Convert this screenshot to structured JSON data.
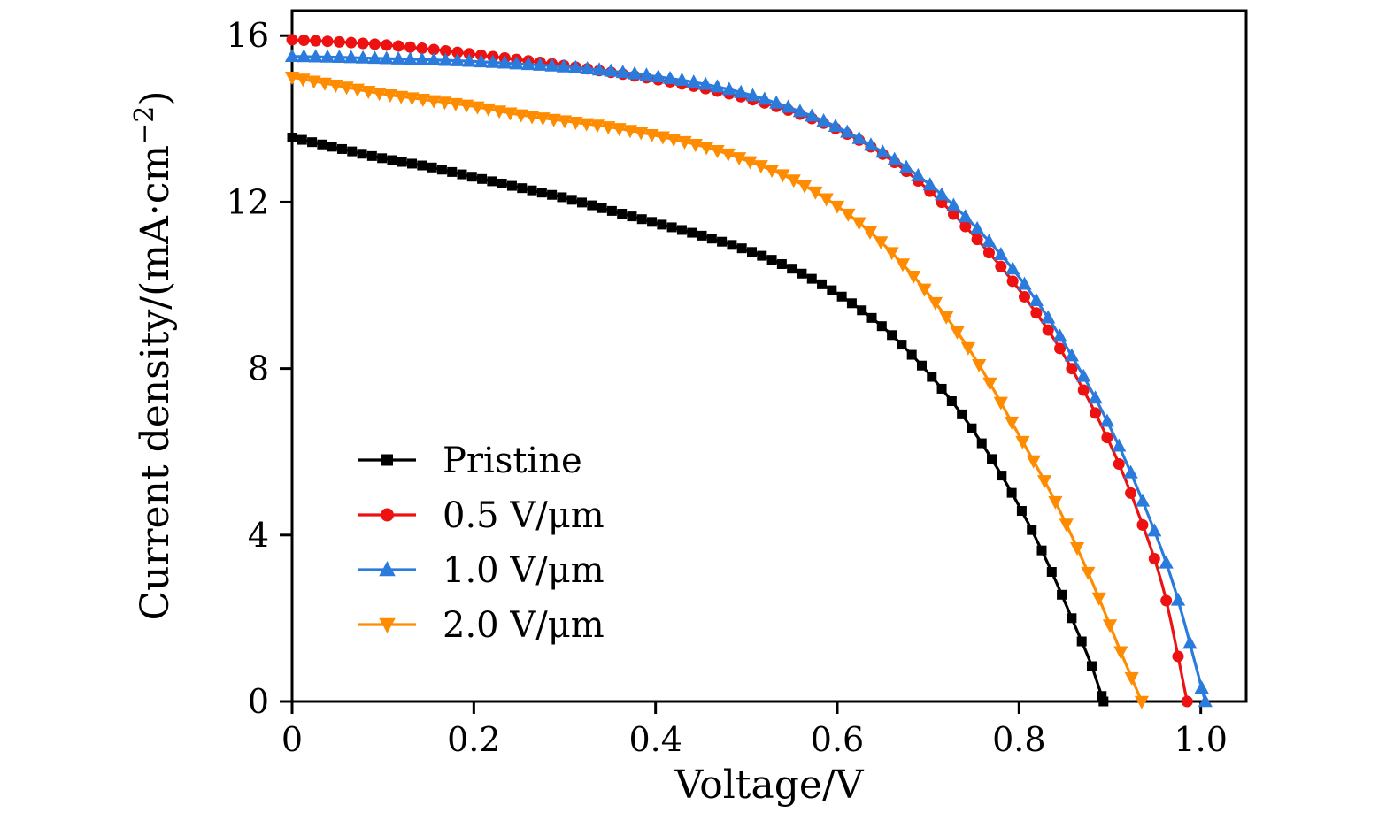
{
  "figure": {
    "background": "#ffffff",
    "frame_color": "#000000"
  },
  "chart_data": {
    "type": "line",
    "title": "",
    "xlabel": "Voltage/V",
    "ylabel": {
      "pre": "Current density/(mA·cm",
      "sup": "−2",
      "post": ")"
    },
    "xlim": [
      0,
      1.05
    ],
    "ylim": [
      0,
      16.6
    ],
    "xticks": [
      0,
      0.2,
      0.4,
      0.6,
      0.8,
      1.0
    ],
    "xtick_labels": [
      "0",
      "0.2",
      "0.4",
      "0.6",
      "0.8",
      "1.0"
    ],
    "yticks": [
      0,
      4,
      8,
      12,
      16
    ],
    "ytick_labels": [
      "0",
      "4",
      "8",
      "12",
      "16"
    ],
    "grid": false,
    "legend_position": "inside-left-middle",
    "series": [
      {
        "name": "Pristine",
        "color": "#000000",
        "marker": "square",
        "marker_size": 11,
        "marker_step": 0.011,
        "x": [
          0,
          0.05,
          0.1,
          0.15,
          0.2,
          0.25,
          0.3,
          0.35,
          0.4,
          0.45,
          0.5,
          0.55,
          0.6,
          0.65,
          0.7,
          0.75,
          0.8,
          0.83,
          0.86,
          0.88,
          0.893
        ],
        "y": [
          13.55,
          13.3,
          13.05,
          12.85,
          12.6,
          12.35,
          12.1,
          11.8,
          11.5,
          11.2,
          10.85,
          10.4,
          9.8,
          9.0,
          7.9,
          6.5,
          4.7,
          3.4,
          1.9,
          0.85,
          0
        ]
      },
      {
        "name": "0.5 V/μm",
        "color": "#ed1111",
        "marker": "circle",
        "marker_size": 13,
        "marker_step": 0.013,
        "x": [
          0,
          0.05,
          0.1,
          0.15,
          0.2,
          0.25,
          0.3,
          0.35,
          0.4,
          0.45,
          0.5,
          0.55,
          0.6,
          0.65,
          0.7,
          0.75,
          0.8,
          0.85,
          0.9,
          0.93,
          0.96,
          0.985
        ],
        "y": [
          15.9,
          15.85,
          15.78,
          15.68,
          15.55,
          15.42,
          15.28,
          15.12,
          14.95,
          14.75,
          14.5,
          14.18,
          13.75,
          13.15,
          12.3,
          11.2,
          9.9,
          8.3,
          6.2,
          4.6,
          2.6,
          0
        ]
      },
      {
        "name": "1.0 V/μm",
        "color": "#2b7bdc",
        "marker": "triangle-up",
        "marker_size": 14,
        "marker_step": 0.013,
        "x": [
          0,
          0.05,
          0.1,
          0.15,
          0.2,
          0.25,
          0.3,
          0.35,
          0.4,
          0.45,
          0.5,
          0.55,
          0.6,
          0.65,
          0.7,
          0.75,
          0.8,
          0.85,
          0.9,
          0.94,
          0.97,
          1.005
        ],
        "y": [
          15.5,
          15.48,
          15.45,
          15.42,
          15.38,
          15.32,
          15.25,
          15.15,
          15.02,
          14.85,
          14.6,
          14.25,
          13.8,
          13.2,
          12.45,
          11.45,
          10.2,
          8.6,
          6.6,
          4.6,
          2.8,
          0
        ]
      },
      {
        "name": "2.0 V/μm",
        "color": "#ff8c00",
        "marker": "triangle-down",
        "marker_size": 14,
        "marker_step": 0.012,
        "x": [
          0,
          0.05,
          0.1,
          0.15,
          0.2,
          0.25,
          0.3,
          0.35,
          0.4,
          0.45,
          0.5,
          0.55,
          0.6,
          0.65,
          0.7,
          0.75,
          0.8,
          0.84,
          0.88,
          0.91,
          0.935
        ],
        "y": [
          15.0,
          14.8,
          14.6,
          14.45,
          14.3,
          14.1,
          13.95,
          13.8,
          13.6,
          13.35,
          13.0,
          12.55,
          11.9,
          11.0,
          9.8,
          8.3,
          6.4,
          4.8,
          2.9,
          1.3,
          0
        ]
      }
    ]
  }
}
